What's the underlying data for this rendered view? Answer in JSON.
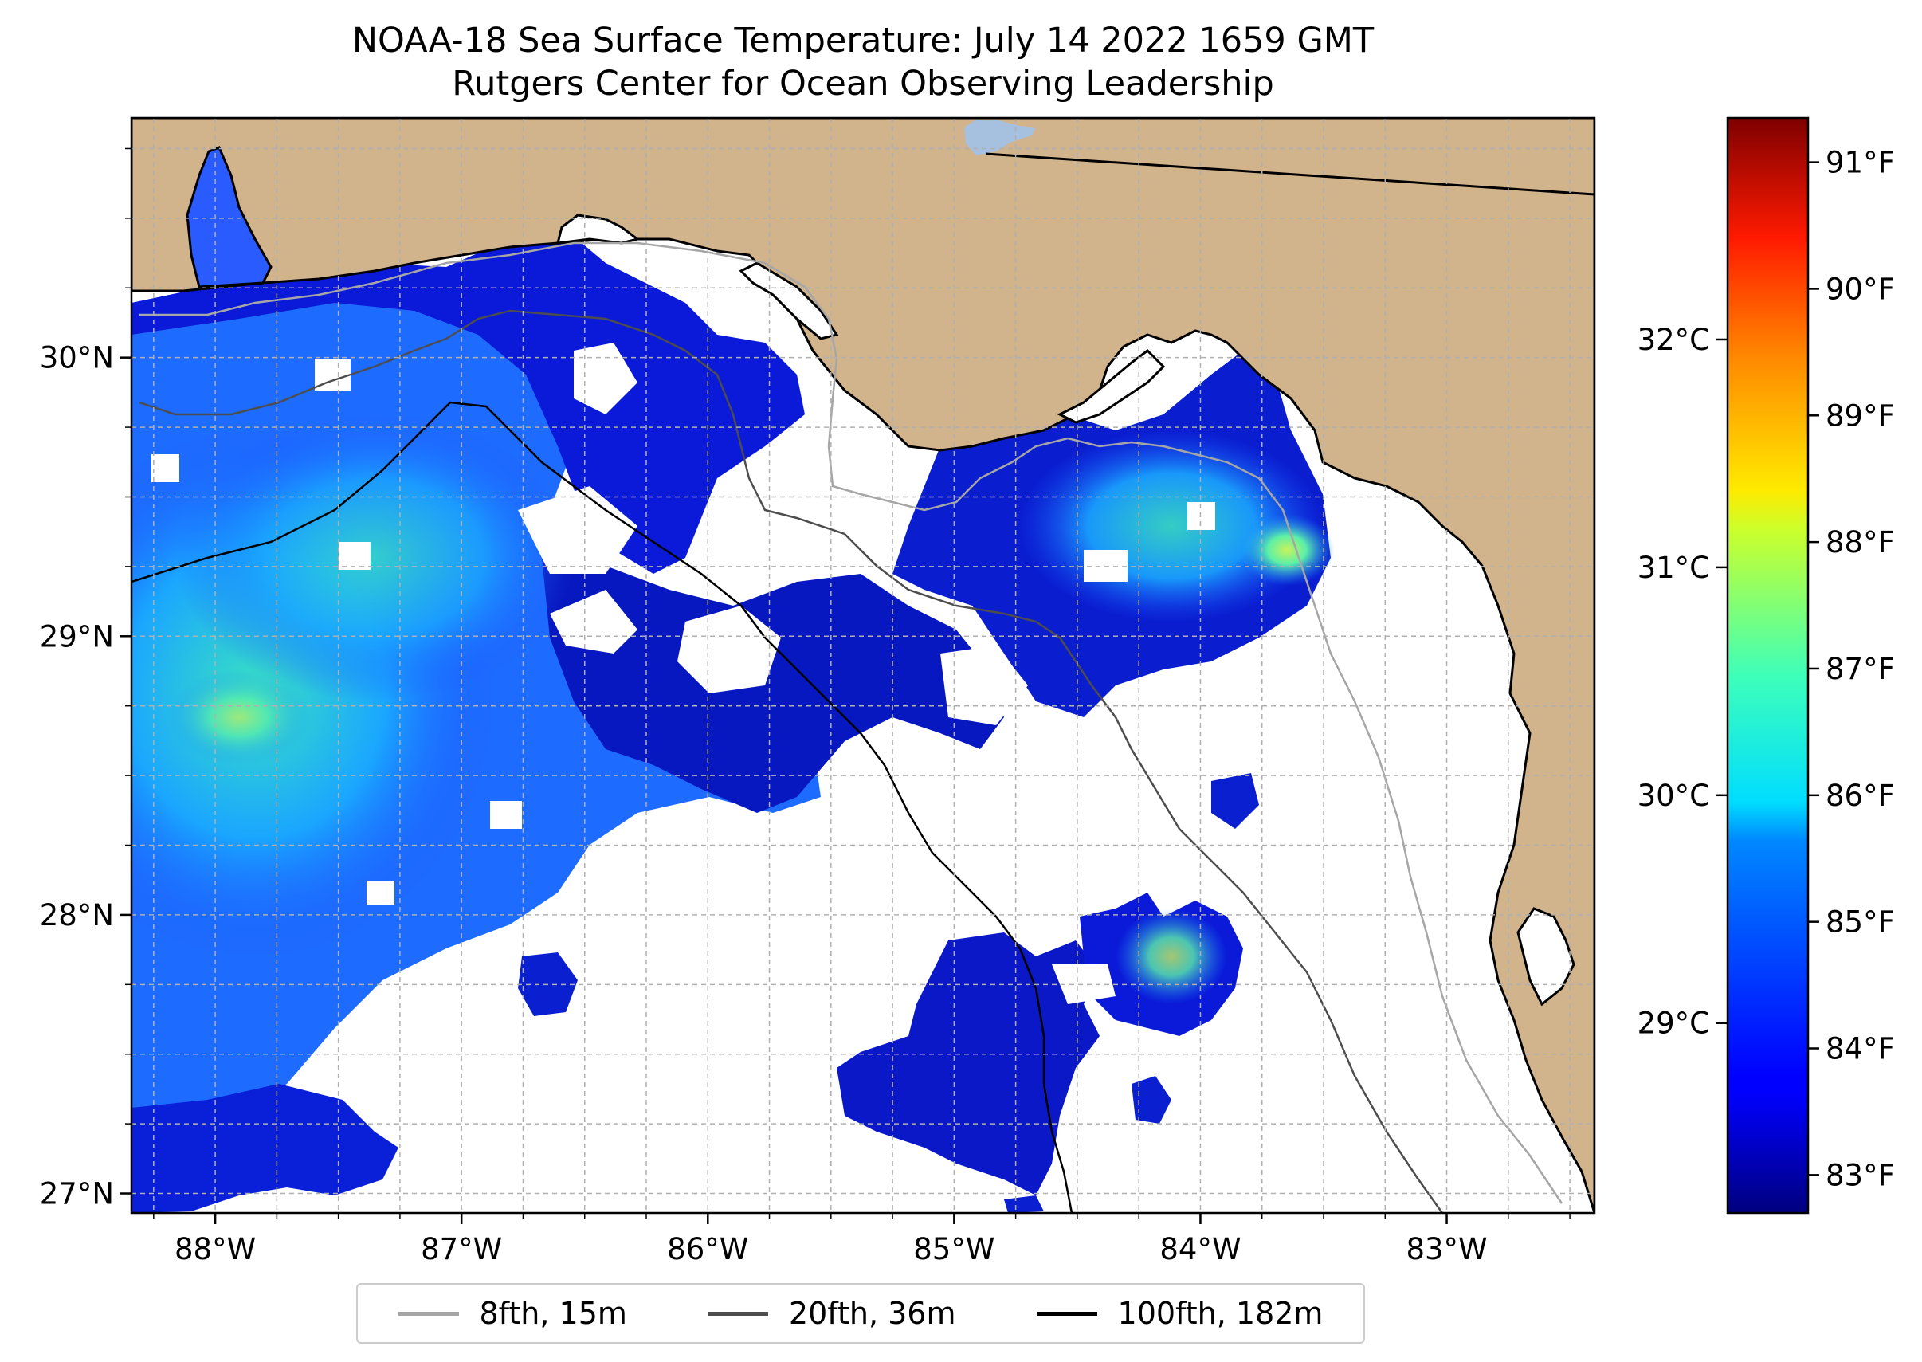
{
  "title": "NOAA-18 Sea Surface Temperature: July 14 2022 1659 GMT",
  "subtitle": "Rutgers Center for Ocean Observing Leadership",
  "colors": {
    "land": "#d1b38c",
    "ocean_nodata": "#ffffff",
    "lake": "#a6c0e0",
    "coastline": "#000000",
    "grid": "#b0b0b0",
    "contour_8fth": "#a6a6a6",
    "contour_20fth": "#4d4d4d",
    "contour_100fth": "#000000"
  },
  "map": {
    "lon_range": [
      -88.34,
      -82.4
    ],
    "lat_range": [
      26.93,
      30.86
    ],
    "lon_ticks": [
      {
        "value": -88,
        "label": "88°W"
      },
      {
        "value": -87,
        "label": "87°W"
      },
      {
        "value": -86,
        "label": "86°W"
      },
      {
        "value": -85,
        "label": "85°W"
      },
      {
        "value": -84,
        "label": "84°W"
      },
      {
        "value": -83,
        "label": "83°W"
      }
    ],
    "lat_ticks": [
      {
        "value": 27,
        "label": "27°N"
      },
      {
        "value": 28,
        "label": "28°N"
      },
      {
        "value": 29,
        "label": "29°N"
      },
      {
        "value": 30,
        "label": "30°N"
      }
    ]
  },
  "colorbar": {
    "min_f": 82.7,
    "max_f": 91.35,
    "f_ticks": [
      {
        "value": 83,
        "label": "83°F"
      },
      {
        "value": 84,
        "label": "84°F"
      },
      {
        "value": 85,
        "label": "85°F"
      },
      {
        "value": 86,
        "label": "86°F"
      },
      {
        "value": 87,
        "label": "87°F"
      },
      {
        "value": 88,
        "label": "88°F"
      },
      {
        "value": 89,
        "label": "89°F"
      },
      {
        "value": 90,
        "label": "90°F"
      },
      {
        "value": 91,
        "label": "91°F"
      }
    ],
    "c_ticks": [
      {
        "value": 29,
        "label": "29°C"
      },
      {
        "value": 30,
        "label": "30°C"
      },
      {
        "value": 31,
        "label": "31°C"
      },
      {
        "value": 32,
        "label": "32°C"
      }
    ]
  },
  "legend": [
    {
      "label": "8fth, 15m",
      "color": "#a6a6a6"
    },
    {
      "label": "20fth, 36m",
      "color": "#4d4d4d"
    },
    {
      "label": "100fth, 182m",
      "color": "#000000"
    }
  ]
}
